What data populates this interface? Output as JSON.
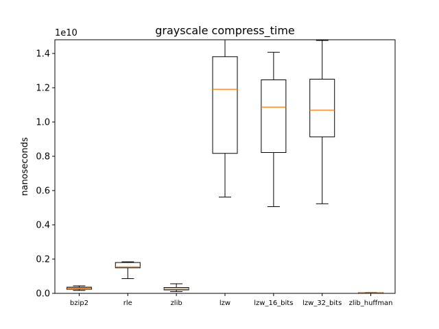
{
  "chart_data": {
    "type": "boxplot",
    "title": "grayscale compress_time",
    "xlabel": "",
    "ylabel": "nanoseconds",
    "y_offset_label": "1e10",
    "ylim": [
      0,
      1.48
    ],
    "yticks": [
      0.0,
      0.2,
      0.4,
      0.6,
      0.8,
      1.0,
      1.2,
      1.4
    ],
    "ytick_labels": [
      "0.0",
      "0.2",
      "0.4",
      "0.6",
      "0.8",
      "1.0",
      "1.2",
      "1.4"
    ],
    "y_unit_multiplier": 10000000000,
    "grid": false,
    "box_color": "#000000",
    "median_color": "#ff7f0e",
    "categories": [
      "bzip2",
      "rle",
      "zlib",
      "lzw",
      "lzw_16_bits",
      "lzw_32_bits",
      "zlib_huffman"
    ],
    "boxes": [
      {
        "label": "bzip2",
        "whisker_low": 0.017,
        "q1": 0.024,
        "median": 0.031,
        "q3": 0.036,
        "whisker_high": 0.044
      },
      {
        "label": "rle",
        "whisker_low": 0.086,
        "q1": 0.149,
        "median": 0.155,
        "q3": 0.18,
        "whisker_high": 0.184
      },
      {
        "label": "zlib",
        "whisker_low": 0.01,
        "q1": 0.02,
        "median": 0.026,
        "q3": 0.034,
        "whisker_high": 0.056
      },
      {
        "label": "lzw",
        "whisker_low": 0.562,
        "q1": 0.817,
        "median": 1.191,
        "q3": 1.381,
        "whisker_high": 1.48
      },
      {
        "label": "lzw_16_bits",
        "whisker_low": 0.506,
        "q1": 0.822,
        "median": 1.087,
        "q3": 1.246,
        "whisker_high": 1.407
      },
      {
        "label": "lzw_32_bits",
        "whisker_low": 0.523,
        "q1": 0.913,
        "median": 1.069,
        "q3": 1.25,
        "whisker_high": 1.476
      },
      {
        "label": "zlib_huffman",
        "whisker_low": 0.001,
        "q1": 0.002,
        "median": 0.003,
        "q3": 0.004,
        "whisker_high": 0.005
      }
    ]
  }
}
